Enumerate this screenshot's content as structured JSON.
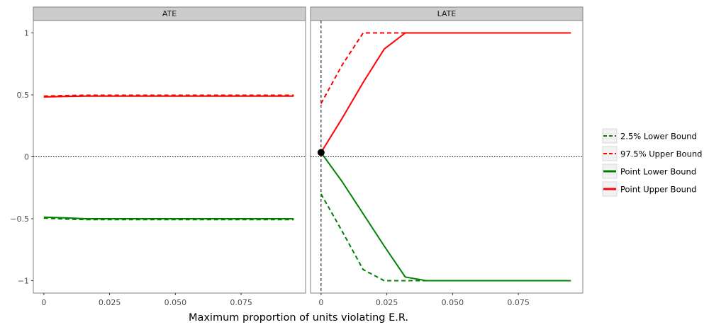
{
  "chart_data": {
    "type": "line",
    "xlabel": "Maximum proportion of units violating E.R.",
    "ylabel": "",
    "xlim": [
      -0.004,
      0.0995
    ],
    "ylim": [
      -1.1,
      1.1
    ],
    "x_ticks": [
      0,
      0.025,
      0.05,
      0.075
    ],
    "x_tick_labels": [
      "0",
      "0.025",
      "0.050",
      "0.075"
    ],
    "y_ticks": [
      1,
      0.5,
      0,
      -0.5,
      -1
    ],
    "y_tick_labels": [
      "1",
      "0.5",
      "0",
      "−0.5",
      "−1"
    ],
    "hline": 0,
    "legend_position": "right",
    "series_styles": [
      {
        "name": "2.5% Lower Bound",
        "color": "#008000",
        "dash": true
      },
      {
        "name": "97.5% Upper Bound",
        "color": "#ff0000",
        "dash": true
      },
      {
        "name": "Point Lower Bound",
        "color": "#008000",
        "dash": false
      },
      {
        "name": "Point Upper Bound",
        "color": "#ff0000",
        "dash": false
      }
    ],
    "panels": [
      {
        "title": "ATE",
        "vline": null,
        "point": null,
        "series": [
          {
            "name": "2.5% Lower Bound",
            "x": [
              0,
              0.008,
              0.016,
              0.03,
              0.05,
              0.07,
              0.095
            ],
            "y": [
              -0.495,
              -0.503,
              -0.507,
              -0.507,
              -0.507,
              -0.507,
              -0.507
            ]
          },
          {
            "name": "97.5% Upper Bound",
            "x": [
              0,
              0.008,
              0.016,
              0.03,
              0.05,
              0.07,
              0.095
            ],
            "y": [
              0.49,
              0.495,
              0.497,
              0.497,
              0.497,
              0.497,
              0.497
            ]
          },
          {
            "name": "Point Lower Bound",
            "x": [
              0,
              0.008,
              0.016,
              0.03,
              0.05,
              0.07,
              0.095
            ],
            "y": [
              -0.487,
              -0.493,
              -0.5,
              -0.5,
              -0.5,
              -0.5,
              -0.5
            ]
          },
          {
            "name": "Point Upper Bound",
            "x": [
              0,
              0.008,
              0.016,
              0.03,
              0.05,
              0.07,
              0.095
            ],
            "y": [
              0.483,
              0.487,
              0.49,
              0.49,
              0.49,
              0.49,
              0.49
            ]
          }
        ]
      },
      {
        "title": "LATE",
        "vline": 0,
        "point": {
          "x": 0,
          "y": 0.035
        },
        "series": [
          {
            "name": "2.5% Lower Bound",
            "x": [
              0,
              0.008,
              0.016,
              0.024,
              0.032,
              0.04,
              0.095
            ],
            "y": [
              -0.3,
              -0.6,
              -0.91,
              -1,
              -1,
              -1,
              -1
            ]
          },
          {
            "name": "97.5% Upper Bound",
            "x": [
              0,
              0.008,
              0.016,
              0.024,
              0.032,
              0.04,
              0.095
            ],
            "y": [
              0.43,
              0.74,
              1,
              1,
              1,
              1,
              1
            ]
          },
          {
            "name": "Point Lower Bound",
            "x": [
              0,
              0.008,
              0.016,
              0.024,
              0.032,
              0.04,
              0.095
            ],
            "y": [
              0.035,
              -0.2,
              -0.46,
              -0.72,
              -0.97,
              -1,
              -1
            ]
          },
          {
            "name": "Point Upper Bound",
            "x": [
              0,
              0.008,
              0.016,
              0.024,
              0.032,
              0.04,
              0.095
            ],
            "y": [
              0.035,
              0.31,
              0.6,
              0.87,
              1,
              1,
              1
            ]
          }
        ]
      }
    ]
  }
}
